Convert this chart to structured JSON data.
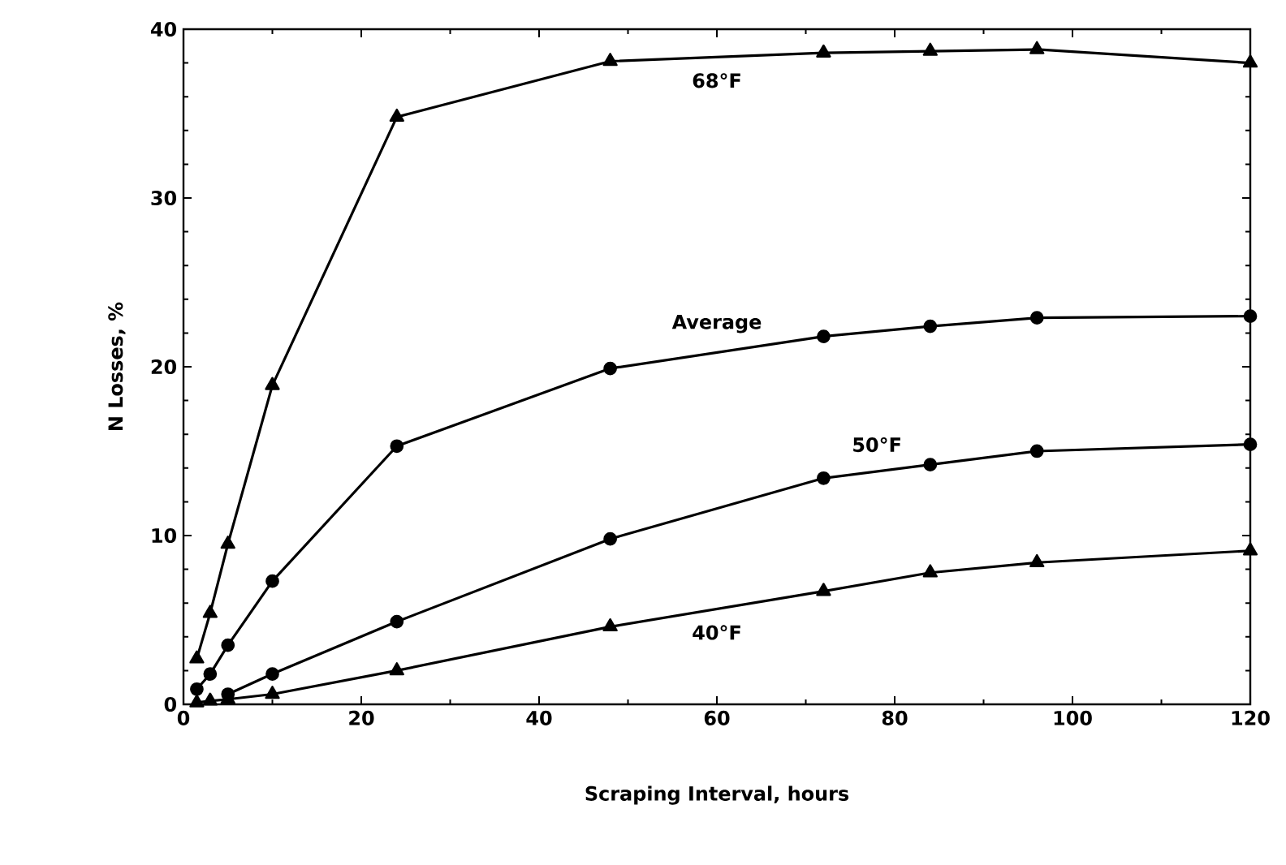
{
  "chart_data": {
    "type": "line",
    "xlabel": "Scraping Interval, hours",
    "ylabel": "N Losses, %",
    "xlim": [
      0,
      120
    ],
    "ylim": [
      0,
      40
    ],
    "xticks": [
      0,
      20,
      40,
      60,
      80,
      100,
      120
    ],
    "yticks": [
      0,
      10,
      20,
      30,
      40
    ],
    "grid": false,
    "line_style": "solid",
    "series": [
      {
        "name": "68°F",
        "color": "#000000",
        "marker": "triangle",
        "x": [
          1.5,
          3,
          5,
          10,
          24,
          48,
          72,
          84,
          96,
          120
        ],
        "values": [
          2.7,
          5.4,
          9.5,
          18.9,
          34.8,
          38.1,
          38.6,
          38.7,
          38.8,
          38.0
        ]
      },
      {
        "name": "Average",
        "color": "#000000",
        "marker": "circle",
        "x": [
          1.5,
          3,
          5,
          10,
          24,
          48,
          72,
          84,
          96,
          120
        ],
        "values": [
          0.9,
          1.8,
          3.5,
          7.3,
          15.3,
          19.9,
          21.8,
          22.4,
          22.9,
          23.0
        ]
      },
      {
        "name": "50°F",
        "color": "#000000",
        "marker": "circle",
        "x": [
          5,
          10,
          24,
          48,
          72,
          84,
          96,
          120
        ],
        "values": [
          0.6,
          1.8,
          4.9,
          9.8,
          13.4,
          14.2,
          15.0,
          15.4
        ]
      },
      {
        "name": "40°F",
        "color": "#000000",
        "marker": "triangle",
        "x": [
          1.5,
          3,
          5,
          10,
          24,
          48,
          72,
          84,
          96,
          120
        ],
        "values": [
          0.1,
          0.2,
          0.3,
          0.6,
          2.0,
          4.6,
          6.7,
          7.8,
          8.4,
          9.1
        ]
      }
    ]
  }
}
